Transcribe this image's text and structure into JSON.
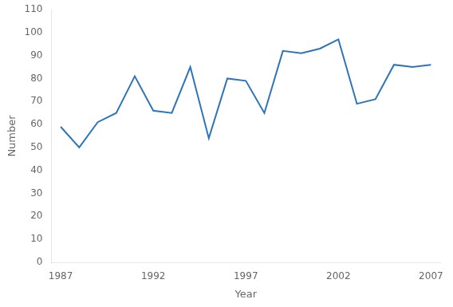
{
  "chart_data": {
    "type": "line",
    "x": [
      1987,
      1988,
      1989,
      1990,
      1991,
      1992,
      1993,
      1994,
      1995,
      1996,
      1997,
      1998,
      1999,
      2000,
      2001,
      2002,
      2003,
      2004,
      2005,
      2006,
      2007
    ],
    "values": [
      59,
      50,
      61,
      65,
      81,
      66,
      65,
      85,
      54,
      80,
      79,
      65,
      92,
      91,
      93,
      97,
      69,
      71,
      86,
      85,
      86
    ],
    "color": "#2E74B8",
    "xlabel": "Year",
    "ylabel": "Number",
    "xlim": [
      1986.5,
      2007.5
    ],
    "xticks": [
      1987,
      1992,
      1997,
      2002,
      2007
    ],
    "ylim": [
      0,
      110
    ],
    "yticks": [
      0,
      10,
      20,
      30,
      40,
      50,
      60,
      70,
      80,
      90,
      100,
      110
    ],
    "grid": false
  }
}
